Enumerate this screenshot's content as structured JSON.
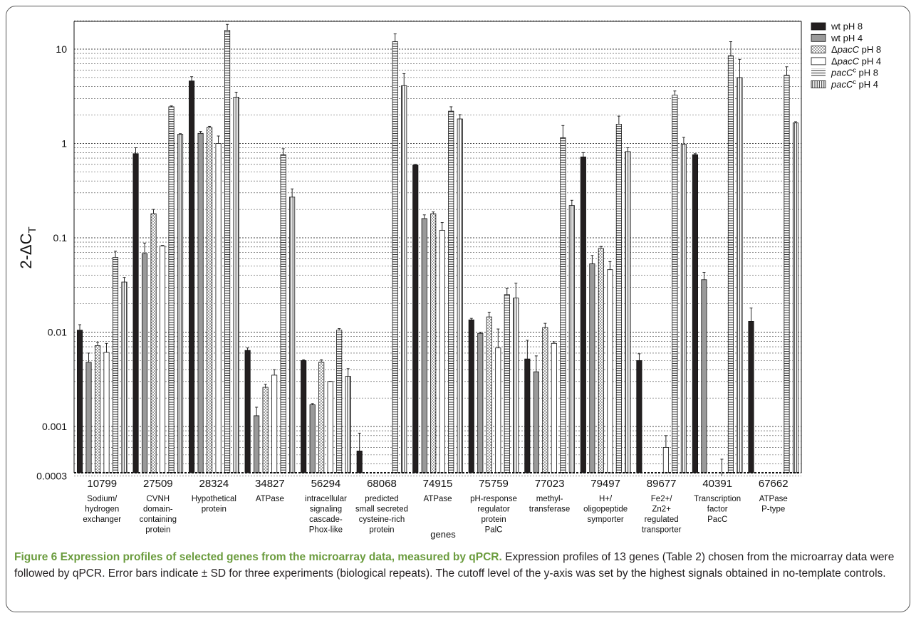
{
  "chart_data": {
    "type": "bar",
    "y_scale": "log",
    "ylim": [
      0.0003,
      20
    ],
    "ylabel": "2-ΔC_T",
    "xlabel": "genes",
    "yticks": [
      {
        "value": 10,
        "label": "10"
      },
      {
        "value": 1,
        "label": "1"
      },
      {
        "value": 0.1,
        "label": "0.1"
      },
      {
        "value": 0.01,
        "label": "0.01"
      },
      {
        "value": 0.001,
        "label": "0.001"
      },
      {
        "value": 0.0003,
        "label": "0.0003"
      }
    ],
    "grid": "dotted horizontal at each log minor tick",
    "legend_position": "right",
    "categories": [
      {
        "id": "10799",
        "desc": [
          "Sodium/",
          "hydrogen",
          "exchanger"
        ]
      },
      {
        "id": "27509",
        "desc": [
          "CVNH",
          "domain-",
          "containing",
          "protein"
        ]
      },
      {
        "id": "28324",
        "desc": [
          "Hypothetical",
          "protein"
        ]
      },
      {
        "id": "34827",
        "desc": [
          "ATPase"
        ]
      },
      {
        "id": "56294",
        "desc": [
          "intracellular",
          "signaling",
          "cascade-",
          "Phox-like"
        ]
      },
      {
        "id": "68068",
        "desc": [
          "predicted",
          "small secreted",
          "cysteine-rich",
          "protein"
        ]
      },
      {
        "id": "74915",
        "desc": [
          "ATPase"
        ]
      },
      {
        "id": "75759",
        "desc": [
          "pH-response",
          "regulator",
          "protein",
          "PalC"
        ]
      },
      {
        "id": "77023",
        "desc": [
          "methyl-",
          "transferase"
        ]
      },
      {
        "id": "79497",
        "desc": [
          "H+/",
          "oligopeptide",
          "symporter"
        ]
      },
      {
        "id": "89677",
        "desc": [
          "Fe2+/",
          "Zn2+",
          "regulated",
          "transporter"
        ]
      },
      {
        "id": "40391",
        "desc": [
          "Transcription",
          "factor",
          "PacC"
        ]
      },
      {
        "id": "67662",
        "desc": [
          "ATPase",
          "P-type"
        ]
      }
    ],
    "series": [
      {
        "legend": "wt pH 8",
        "fill": "black",
        "values": [
          0.0105,
          0.78,
          4.6,
          0.0064,
          0.005,
          0.00055,
          0.59,
          0.0135,
          0.0052,
          0.72,
          0.005,
          0.76,
          0.013
        ],
        "errors": [
          0.0015,
          0.12,
          0.5,
          0.0004,
          0.0001,
          0.0003,
          0.01,
          0.0005,
          0.003,
          0.08,
          0.0009,
          0.02,
          0.005
        ]
      },
      {
        "legend": "wt pH 4",
        "fill": "gray",
        "values": [
          0.0048,
          0.068,
          1.28,
          0.0013,
          0.0017,
          null,
          0.16,
          0.0097,
          0.0038,
          0.053,
          null,
          0.036,
          null
        ],
        "errors": [
          0.0012,
          0.02,
          0.06,
          0.0003,
          5e-05,
          null,
          0.015,
          0.0003,
          0.0018,
          0.012,
          null,
          0.007,
          null
        ]
      },
      {
        "legend": "ΔpacC pH 8",
        "fill": "dots",
        "values": [
          0.0072,
          0.18,
          1.48,
          0.0026,
          0.0048,
          null,
          0.18,
          0.0145,
          0.0112,
          0.077,
          null,
          null,
          null
        ],
        "errors": [
          0.0006,
          0.02,
          0.04,
          0.0002,
          0.0003,
          null,
          0.008,
          0.0018,
          0.0012,
          0.004,
          null,
          null,
          null
        ]
      },
      {
        "legend": "ΔpacC pH 4",
        "fill": "white",
        "values": [
          0.0061,
          0.082,
          1.0,
          0.0035,
          0.003,
          null,
          0.12,
          0.0068,
          0.0076,
          0.046,
          0.0006,
          0.0003,
          null
        ],
        "errors": [
          0.0015,
          0.001,
          0.2,
          0.0005,
          1e-05,
          null,
          0.025,
          0.004,
          0.0003,
          0.01,
          0.0002,
          0.00015,
          null
        ]
      },
      {
        "legend": "pacC^c pH 8",
        "fill": "horizontal-lines",
        "values": [
          0.062,
          2.45,
          15.8,
          0.76,
          0.0105,
          12.0,
          2.2,
          0.025,
          1.15,
          1.6,
          3.25,
          8.5,
          5.3
        ],
        "errors": [
          0.01,
          0.05,
          2.5,
          0.12,
          0.0004,
          2.5,
          0.25,
          0.004,
          0.4,
          0.35,
          0.35,
          3.5,
          1.2
        ]
      },
      {
        "legend": "pacC^c pH 4",
        "fill": "vertical-lines",
        "values": [
          0.034,
          1.25,
          3.1,
          0.27,
          0.0034,
          4.1,
          1.82,
          0.023,
          0.22,
          0.82,
          0.98,
          5.0,
          1.65
        ],
        "errors": [
          0.004,
          0.02,
          0.4,
          0.06,
          0.0007,
          1.4,
          0.2,
          0.01,
          0.03,
          0.08,
          0.18,
          2.8,
          0.05
        ]
      }
    ]
  },
  "caption": {
    "bold": "Figure 6 Expression profiles of selected genes from the microarray data, measured by qPCR.",
    "text": " Expression profiles of 13 genes (Table 2) chosen from the microarray data were followed by qPCR. Error bars indicate ± SD for three experiments (biological repeats). The cutoff level of the y-axis was set by the highest signals obtained in no-template controls."
  }
}
